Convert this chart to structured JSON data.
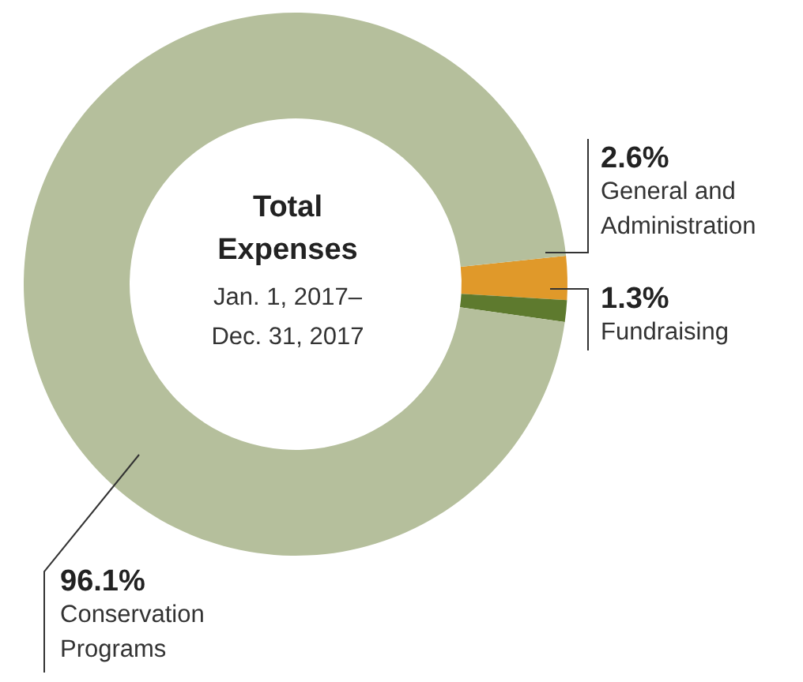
{
  "chart_data": {
    "type": "donut",
    "title": "Total Expenses",
    "subtitle": "Jan. 1, 2017–Dec. 31, 2017",
    "categories": [
      "General and Administration",
      "Fundraising",
      "Conservation Programs"
    ],
    "values": [
      2.6,
      1.3,
      96.1
    ],
    "colors": [
      "#e0992a",
      "#5e7a2e",
      "#b5bf9c"
    ],
    "value_labels": [
      "2.6%",
      "1.3%",
      "96.1%"
    ]
  }
}
